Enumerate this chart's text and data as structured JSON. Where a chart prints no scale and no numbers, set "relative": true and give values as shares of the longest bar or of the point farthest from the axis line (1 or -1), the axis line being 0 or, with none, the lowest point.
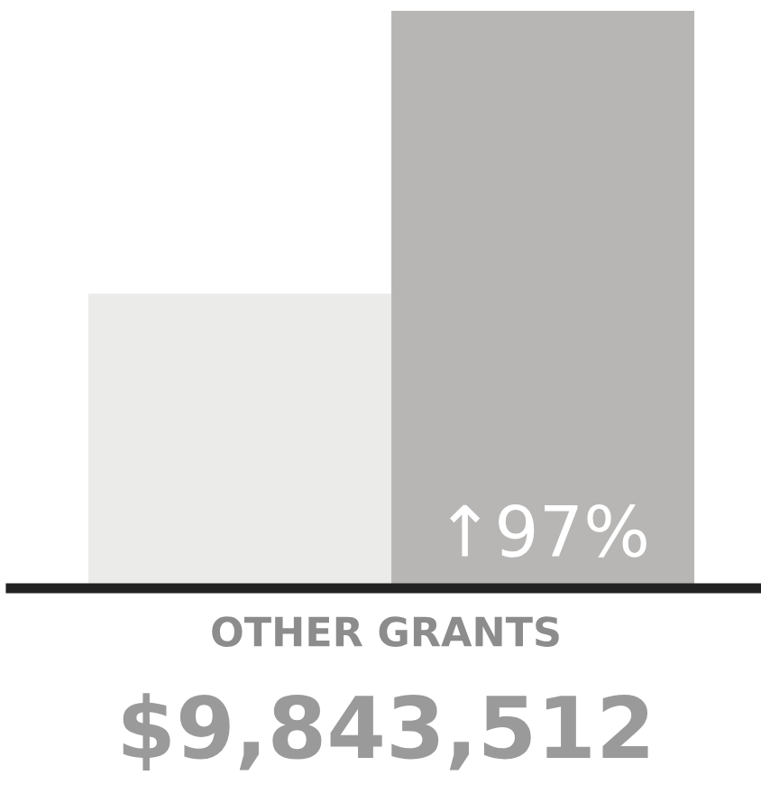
{
  "chart_data": {
    "type": "bar",
    "relative": true,
    "categories": [
      null,
      null
    ],
    "values": [
      0.51,
      1
    ],
    "colors": [
      "#ebebe9",
      "#b7b6b4"
    ],
    "annotations": [
      "↑97%"
    ],
    "title": "OTHER GRANTS",
    "subtitle": "$9,843,512",
    "grid": false
  }
}
